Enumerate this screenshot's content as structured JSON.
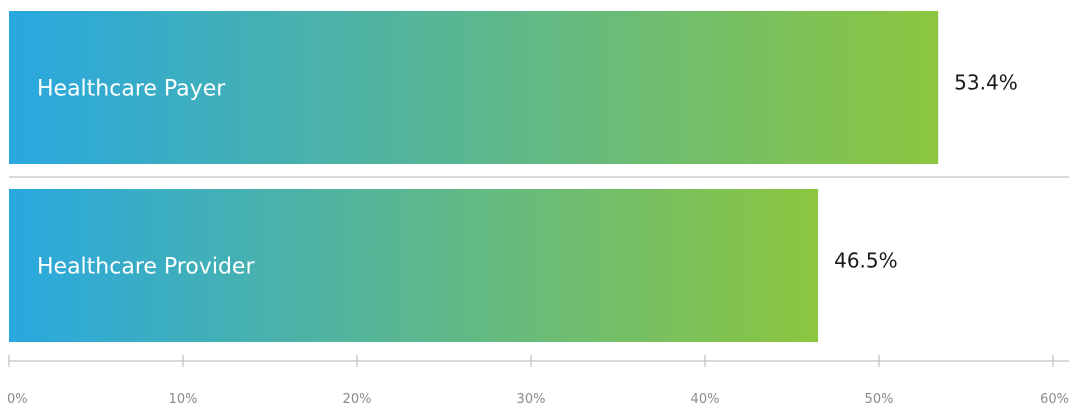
{
  "chart_data": {
    "type": "bar",
    "orientation": "horizontal",
    "categories": [
      "Healthcare Payer",
      "Healthcare Provider"
    ],
    "values": [
      53.4,
      46.5
    ],
    "value_labels": [
      "53.4%",
      "46.5%"
    ],
    "xlim": [
      0,
      60
    ],
    "xticks": [
      0,
      10,
      20,
      30,
      40,
      50,
      60
    ],
    "xtick_labels": [
      "0%",
      "10%",
      "20%",
      "30%",
      "40%",
      "50%",
      "60%"
    ],
    "title": "",
    "xlabel": "",
    "ylabel": "",
    "legend": "none",
    "grid": false,
    "colors": {
      "gradient_start": "#29a8e0",
      "gradient_end": "#8cc63f",
      "bar_text": "#ffffff",
      "value_text": "#1a1a1a",
      "axis": "#b3b3b3",
      "tick_text": "#8a8a8a",
      "separator": "#b3b3b3"
    }
  }
}
